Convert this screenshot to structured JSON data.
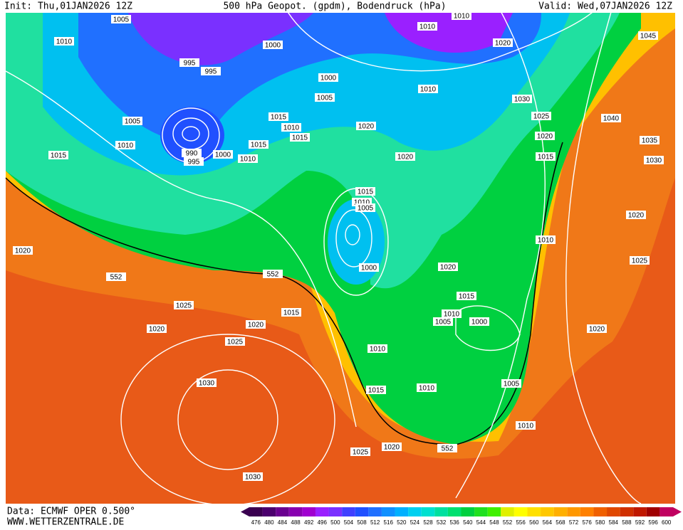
{
  "header": {
    "init": "Init: Thu,01JAN2026 12Z",
    "title": "500 hPa Geopot. (gpdm), Bodendruck (hPa)",
    "valid": "Valid: Wed,07JAN2026 12Z"
  },
  "footer": {
    "source": "Data: ECMWF OPER 0.500°",
    "site": "WWW.WETTERZENTRALE.DE"
  },
  "isobar_labels": [
    1010,
    1005,
    1010,
    995,
    995,
    1000,
    1000,
    1005,
    1010,
    1020,
    1010,
    1030,
    1025,
    1020,
    1015,
    1045,
    1040,
    1035,
    1030,
    1005,
    1010,
    1015,
    1015,
    1010,
    1015,
    1015,
    990,
    995,
    1000,
    1010,
    1020,
    1020,
    1015,
    1010,
    1005,
    1020,
    552,
    552,
    1000,
    1020,
    1010,
    1020,
    1025,
    1025,
    1015,
    1015,
    1010,
    1005,
    1000,
    1020,
    1020,
    1025,
    1010,
    1020,
    1030,
    1015,
    1010,
    1005,
    1010,
    552,
    1025,
    1020,
    1030
  ],
  "colorbar": {
    "ticks": [
      476,
      480,
      484,
      488,
      492,
      496,
      500,
      504,
      508,
      512,
      516,
      520,
      524,
      528,
      532,
      536,
      540,
      544,
      548,
      552,
      556,
      560,
      564,
      568,
      572,
      576,
      580,
      584,
      588,
      592,
      596,
      600
    ],
    "colors": [
      "#3a0050",
      "#4b006e",
      "#6a0090",
      "#8800b0",
      "#a000d0",
      "#9a20ff",
      "#7a30ff",
      "#4040ff",
      "#2050ff",
      "#2070ff",
      "#1090ff",
      "#00b0ff",
      "#00d0f0",
      "#00e0d0",
      "#00e0a0",
      "#00e070",
      "#00d040",
      "#20e020",
      "#40f000",
      "#e0f000",
      "#ffff00",
      "#ffe000",
      "#ffc800",
      "#ffb000",
      "#ff9800",
      "#ff8000",
      "#f06000",
      "#e04800",
      "#d03000",
      "#c01800",
      "#a00000",
      "#c00060"
    ]
  }
}
